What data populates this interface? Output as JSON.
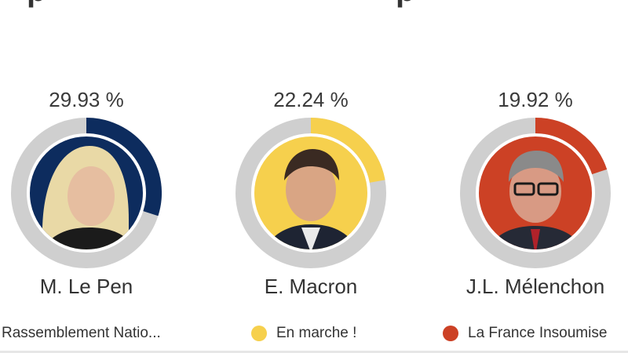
{
  "chart_data": {
    "type": "pie",
    "title": "",
    "center_total": 100,
    "series": [
      {
        "name": "M. Le Pen",
        "party": "Rassemblement Natio...",
        "value": 29.93,
        "value_label": "29.93 %",
        "color": "#0d2c5e",
        "portrait": "le-pen-portrait",
        "portrait_bg": "#0d2c5e"
      },
      {
        "name": "E. Macron",
        "party": "En marche !",
        "value": 22.24,
        "value_label": "22.24 %",
        "color": "#f6d04d",
        "portrait": "macron-portrait",
        "portrait_bg": "#f6d04d"
      },
      {
        "name": "J.L. Mélenchon",
        "party": "La France Insoumise",
        "value": 19.92,
        "value_label": "19.92 %",
        "color": "#cc4125",
        "portrait": "melenchon-portrait",
        "portrait_bg": "#cc4125"
      }
    ],
    "track_color": "#cfcfcf"
  }
}
